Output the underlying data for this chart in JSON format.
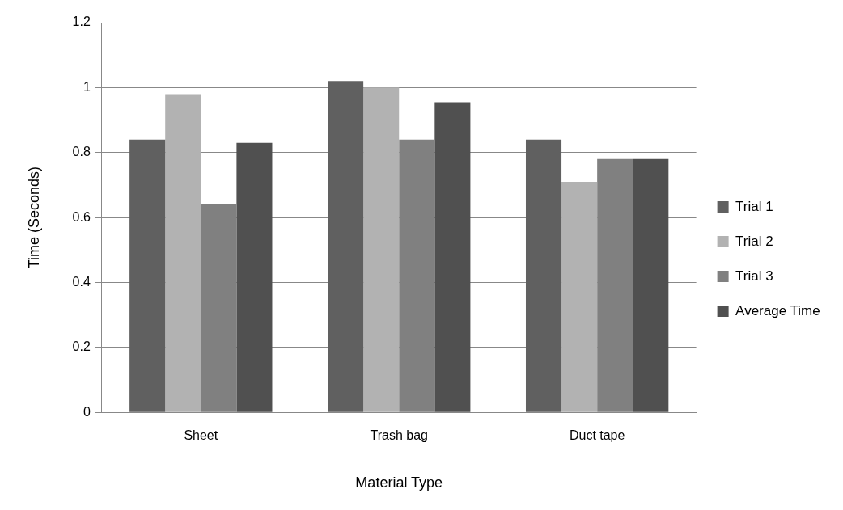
{
  "chart_data": {
    "type": "bar",
    "xlabel": "Material Type",
    "ylabel": "Time (Seconds)",
    "categories": [
      "Sheet",
      "Trash bag",
      "Duct tape"
    ],
    "series": [
      {
        "name": "Trial 1",
        "color": "#606060",
        "values": [
          0.84,
          1.02,
          0.84
        ]
      },
      {
        "name": "Trial 2",
        "color": "#b2b2b2",
        "values": [
          0.98,
          1.0,
          0.71
        ]
      },
      {
        "name": "Trial 3",
        "color": "#808080",
        "values": [
          0.64,
          0.84,
          0.78
        ]
      },
      {
        "name": "Average Time",
        "color": "#505050",
        "values": [
          0.83,
          0.955,
          0.78
        ]
      }
    ],
    "ylim": [
      0,
      1.2
    ],
    "yticks": [
      0,
      0.2,
      0.4,
      0.6,
      0.8,
      1,
      1.2
    ],
    "grid": "y",
    "legend": "right"
  }
}
